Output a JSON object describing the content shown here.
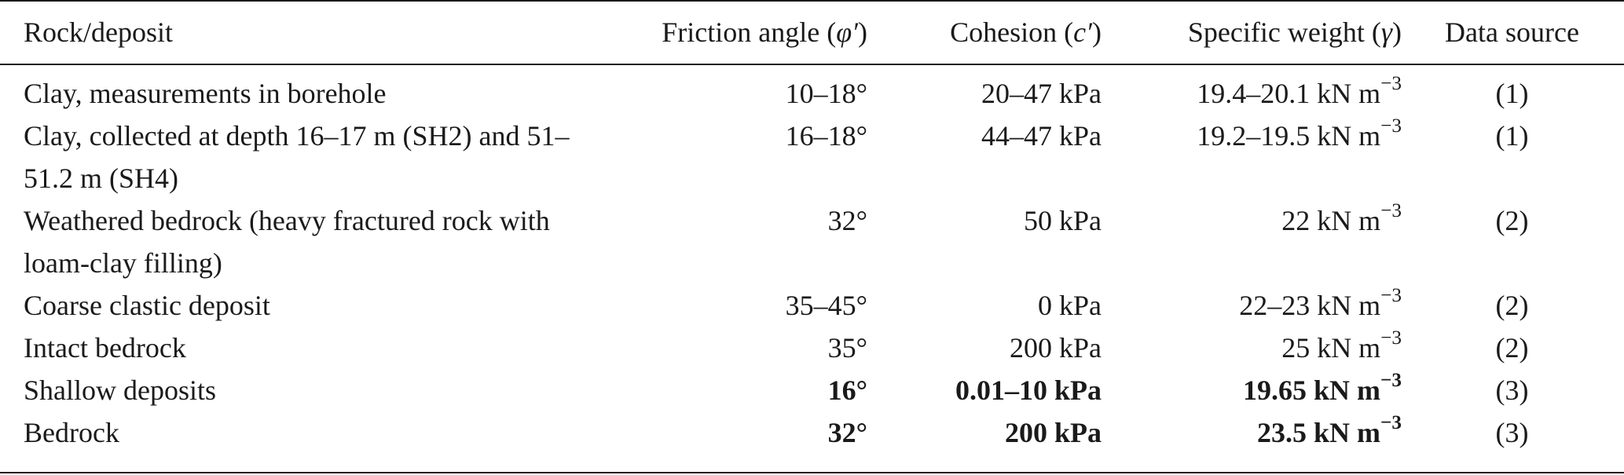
{
  "table": {
    "headers": {
      "name": "Rock/deposit",
      "friction_label": "Friction angle (",
      "friction_symbol": "φ′",
      "cohesion_label": "Cohesion (",
      "cohesion_symbol": "c′",
      "weight_label": "Specific weight (",
      "weight_symbol": "γ",
      "close_paren": ")",
      "source": "Data source"
    },
    "unit_exponent": "−3",
    "rows": [
      {
        "name": "Clay, measurements in borehole",
        "friction": "10–18°",
        "cohesion": "20–47 kPa",
        "weight": "19.4–20.1 kN m",
        "source": "(1)",
        "bold": false
      },
      {
        "name": "Clay, collected at depth 16–17 m (SH2) and 51–51.2 m (SH4)",
        "friction": "16–18°",
        "cohesion": "44–47 kPa",
        "weight": "19.2–19.5 kN m",
        "source": "(1)",
        "bold": false
      },
      {
        "name": "Weathered bedrock (heavy fractured rock with loam-clay filling)",
        "friction": "32°",
        "cohesion": "50 kPa",
        "weight": "22 kN m",
        "source": "(2)",
        "bold": false
      },
      {
        "name": "Coarse clastic deposit",
        "friction": "35–45°",
        "cohesion": "0 kPa",
        "weight": "22–23 kN m",
        "source": "(2)",
        "bold": false
      },
      {
        "name": "Intact bedrock",
        "friction": "35°",
        "cohesion": "200 kPa",
        "weight": "25 kN m",
        "source": "(2)",
        "bold": false
      },
      {
        "name": "Shallow deposits",
        "friction": "16°",
        "cohesion": "0.01–10 kPa",
        "weight": "19.65 kN m",
        "source": "(3)",
        "bold": true
      },
      {
        "name": "Bedrock",
        "friction": "32°",
        "cohesion": "200 kPa",
        "weight": "23.5 kN m",
        "source": "(3)",
        "bold": true
      }
    ]
  }
}
